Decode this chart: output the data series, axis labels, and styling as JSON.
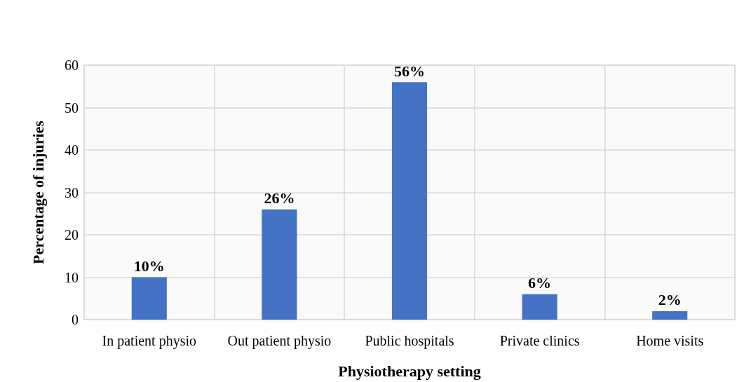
{
  "chart_data": {
    "type": "bar",
    "xlabel": "Physiotherapy setting",
    "ylabel": "Percentage of injuries",
    "categories": [
      "In patient physio",
      "Out patient physio",
      "Public hospitals",
      "Private clinics",
      "Home visits"
    ],
    "values": [
      10,
      26,
      56,
      6,
      2
    ],
    "value_labels": [
      "10%",
      "26%",
      "56%",
      "6%",
      "2%"
    ],
    "color": "#4472c4",
    "ylim": [
      0,
      60
    ],
    "yticks": [
      0,
      10,
      20,
      30,
      40,
      50,
      60
    ],
    "grid": true
  }
}
